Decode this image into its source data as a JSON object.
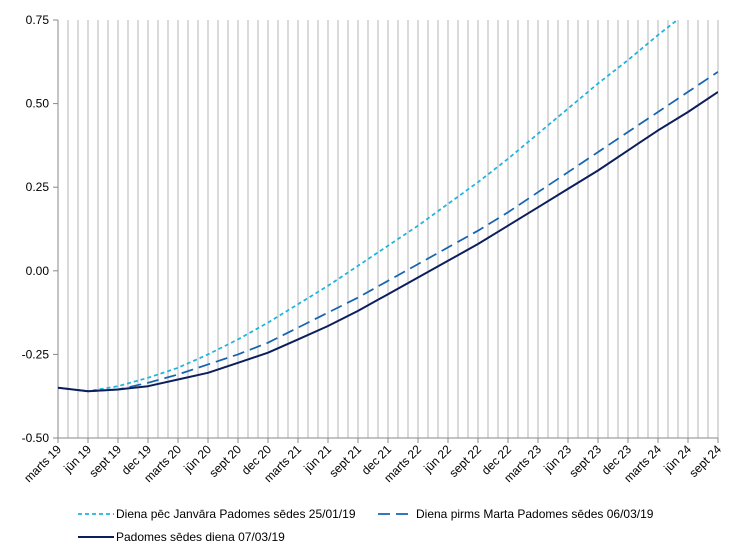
{
  "chart_data": {
    "type": "line",
    "title": "",
    "xlabel": "",
    "ylabel": "",
    "ylim": [
      -0.5,
      0.75
    ],
    "yticks": [
      -0.5,
      -0.25,
      0.0,
      0.25,
      0.5,
      0.75
    ],
    "ytick_labels": [
      "-0.50",
      "-0.25",
      "0.00",
      "0.25",
      "0.50",
      "0.75"
    ],
    "categories": [
      "marts 19",
      "jūn 19",
      "sept 19",
      "dec 19",
      "marts 20",
      "jūn 20",
      "sept 20",
      "dec 20",
      "marts 21",
      "jūn 21",
      "sept 21",
      "dec 21",
      "marts 22",
      "jūn 22",
      "sept 22",
      "dec 22",
      "marts 23",
      "jūn 23",
      "sept 23",
      "dec 23",
      "marts 24",
      "jūn 24",
      "sept 24"
    ],
    "grid": "vertical monthly",
    "legend_position": "bottom",
    "series": [
      {
        "name": "Diena pēc Janvāra Padomes sēdes 25/01/19",
        "color": "#1fb3e0",
        "dash": "short",
        "values": [
          -0.35,
          -0.36,
          -0.345,
          -0.32,
          -0.29,
          -0.25,
          -0.205,
          -0.155,
          -0.1,
          -0.045,
          0.015,
          0.075,
          0.135,
          0.2,
          0.265,
          0.335,
          0.41,
          0.485,
          0.56,
          0.63,
          0.705,
          0.775,
          0.85
        ]
      },
      {
        "name": "Diena pirms Marta Padomes sēdes 06/03/19",
        "color": "#1565b0",
        "dash": "long",
        "values": [
          -0.35,
          -0.36,
          -0.355,
          -0.335,
          -0.31,
          -0.28,
          -0.25,
          -0.215,
          -0.17,
          -0.125,
          -0.08,
          -0.03,
          0.02,
          0.07,
          0.12,
          0.175,
          0.235,
          0.295,
          0.355,
          0.415,
          0.475,
          0.535,
          0.595
        ]
      },
      {
        "name": "Padomes sēdes diena 07/03/19",
        "color": "#0c1f5c",
        "dash": "solid",
        "values": [
          -0.35,
          -0.36,
          -0.355,
          -0.345,
          -0.325,
          -0.305,
          -0.275,
          -0.245,
          -0.205,
          -0.165,
          -0.12,
          -0.07,
          -0.02,
          0.03,
          0.08,
          0.135,
          0.19,
          0.245,
          0.3,
          0.36,
          0.42,
          0.475,
          0.535
        ]
      }
    ]
  }
}
